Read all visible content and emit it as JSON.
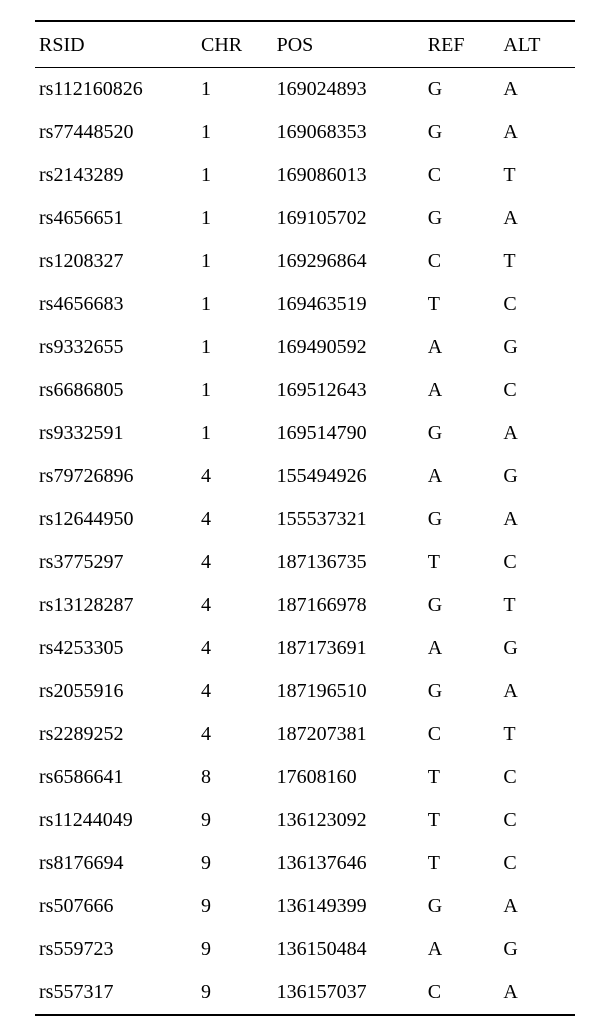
{
  "table": {
    "type": "table",
    "columns": [
      "RSID",
      "CHR",
      "POS",
      "REF",
      "ALT"
    ],
    "column_widths_pct": [
      30,
      14,
      28,
      14,
      14
    ],
    "header_fontsize": 20,
    "cell_fontsize": 20,
    "font_family": "SimSun/serif",
    "background_color": "#ffffff",
    "text_color": "#000000",
    "border_top_width": 2,
    "border_bottom_width": 2,
    "header_border_bottom_width": 1.5,
    "border_color": "#000000",
    "row_padding_v": 10,
    "rows": [
      [
        "rs112160826",
        "1",
        "169024893",
        "G",
        "A"
      ],
      [
        "rs77448520",
        "1",
        "169068353",
        "G",
        "A"
      ],
      [
        "rs2143289",
        "1",
        "169086013",
        "C",
        "T"
      ],
      [
        "rs4656651",
        "1",
        "169105702",
        "G",
        "A"
      ],
      [
        "rs1208327",
        "1",
        "169296864",
        "C",
        "T"
      ],
      [
        "rs4656683",
        "1",
        "169463519",
        "T",
        "C"
      ],
      [
        "rs9332655",
        "1",
        "169490592",
        "A",
        "G"
      ],
      [
        "rs6686805",
        "1",
        "169512643",
        "A",
        "C"
      ],
      [
        "rs9332591",
        "1",
        "169514790",
        "G",
        "A"
      ],
      [
        "rs79726896",
        "4",
        "155494926",
        "A",
        "G"
      ],
      [
        "rs12644950",
        "4",
        "155537321",
        "G",
        "A"
      ],
      [
        "rs3775297",
        "4",
        "187136735",
        "T",
        "C"
      ],
      [
        "rs13128287",
        "4",
        "187166978",
        "G",
        "T"
      ],
      [
        "rs4253305",
        "4",
        "187173691",
        "A",
        "G"
      ],
      [
        "rs2055916",
        "4",
        "187196510",
        "G",
        "A"
      ],
      [
        "rs2289252",
        "4",
        "187207381",
        "C",
        "T"
      ],
      [
        "rs6586641",
        "8",
        "17608160",
        "T",
        "C"
      ],
      [
        "rs11244049",
        "9",
        "136123092",
        "T",
        "C"
      ],
      [
        "rs8176694",
        "9",
        "136137646",
        "T",
        "C"
      ],
      [
        "rs507666",
        "9",
        "136149399",
        "G",
        "A"
      ],
      [
        "rs559723",
        "9",
        "136150484",
        "A",
        "G"
      ],
      [
        "rs557317",
        "9",
        "136157037",
        "C",
        "A"
      ]
    ]
  }
}
